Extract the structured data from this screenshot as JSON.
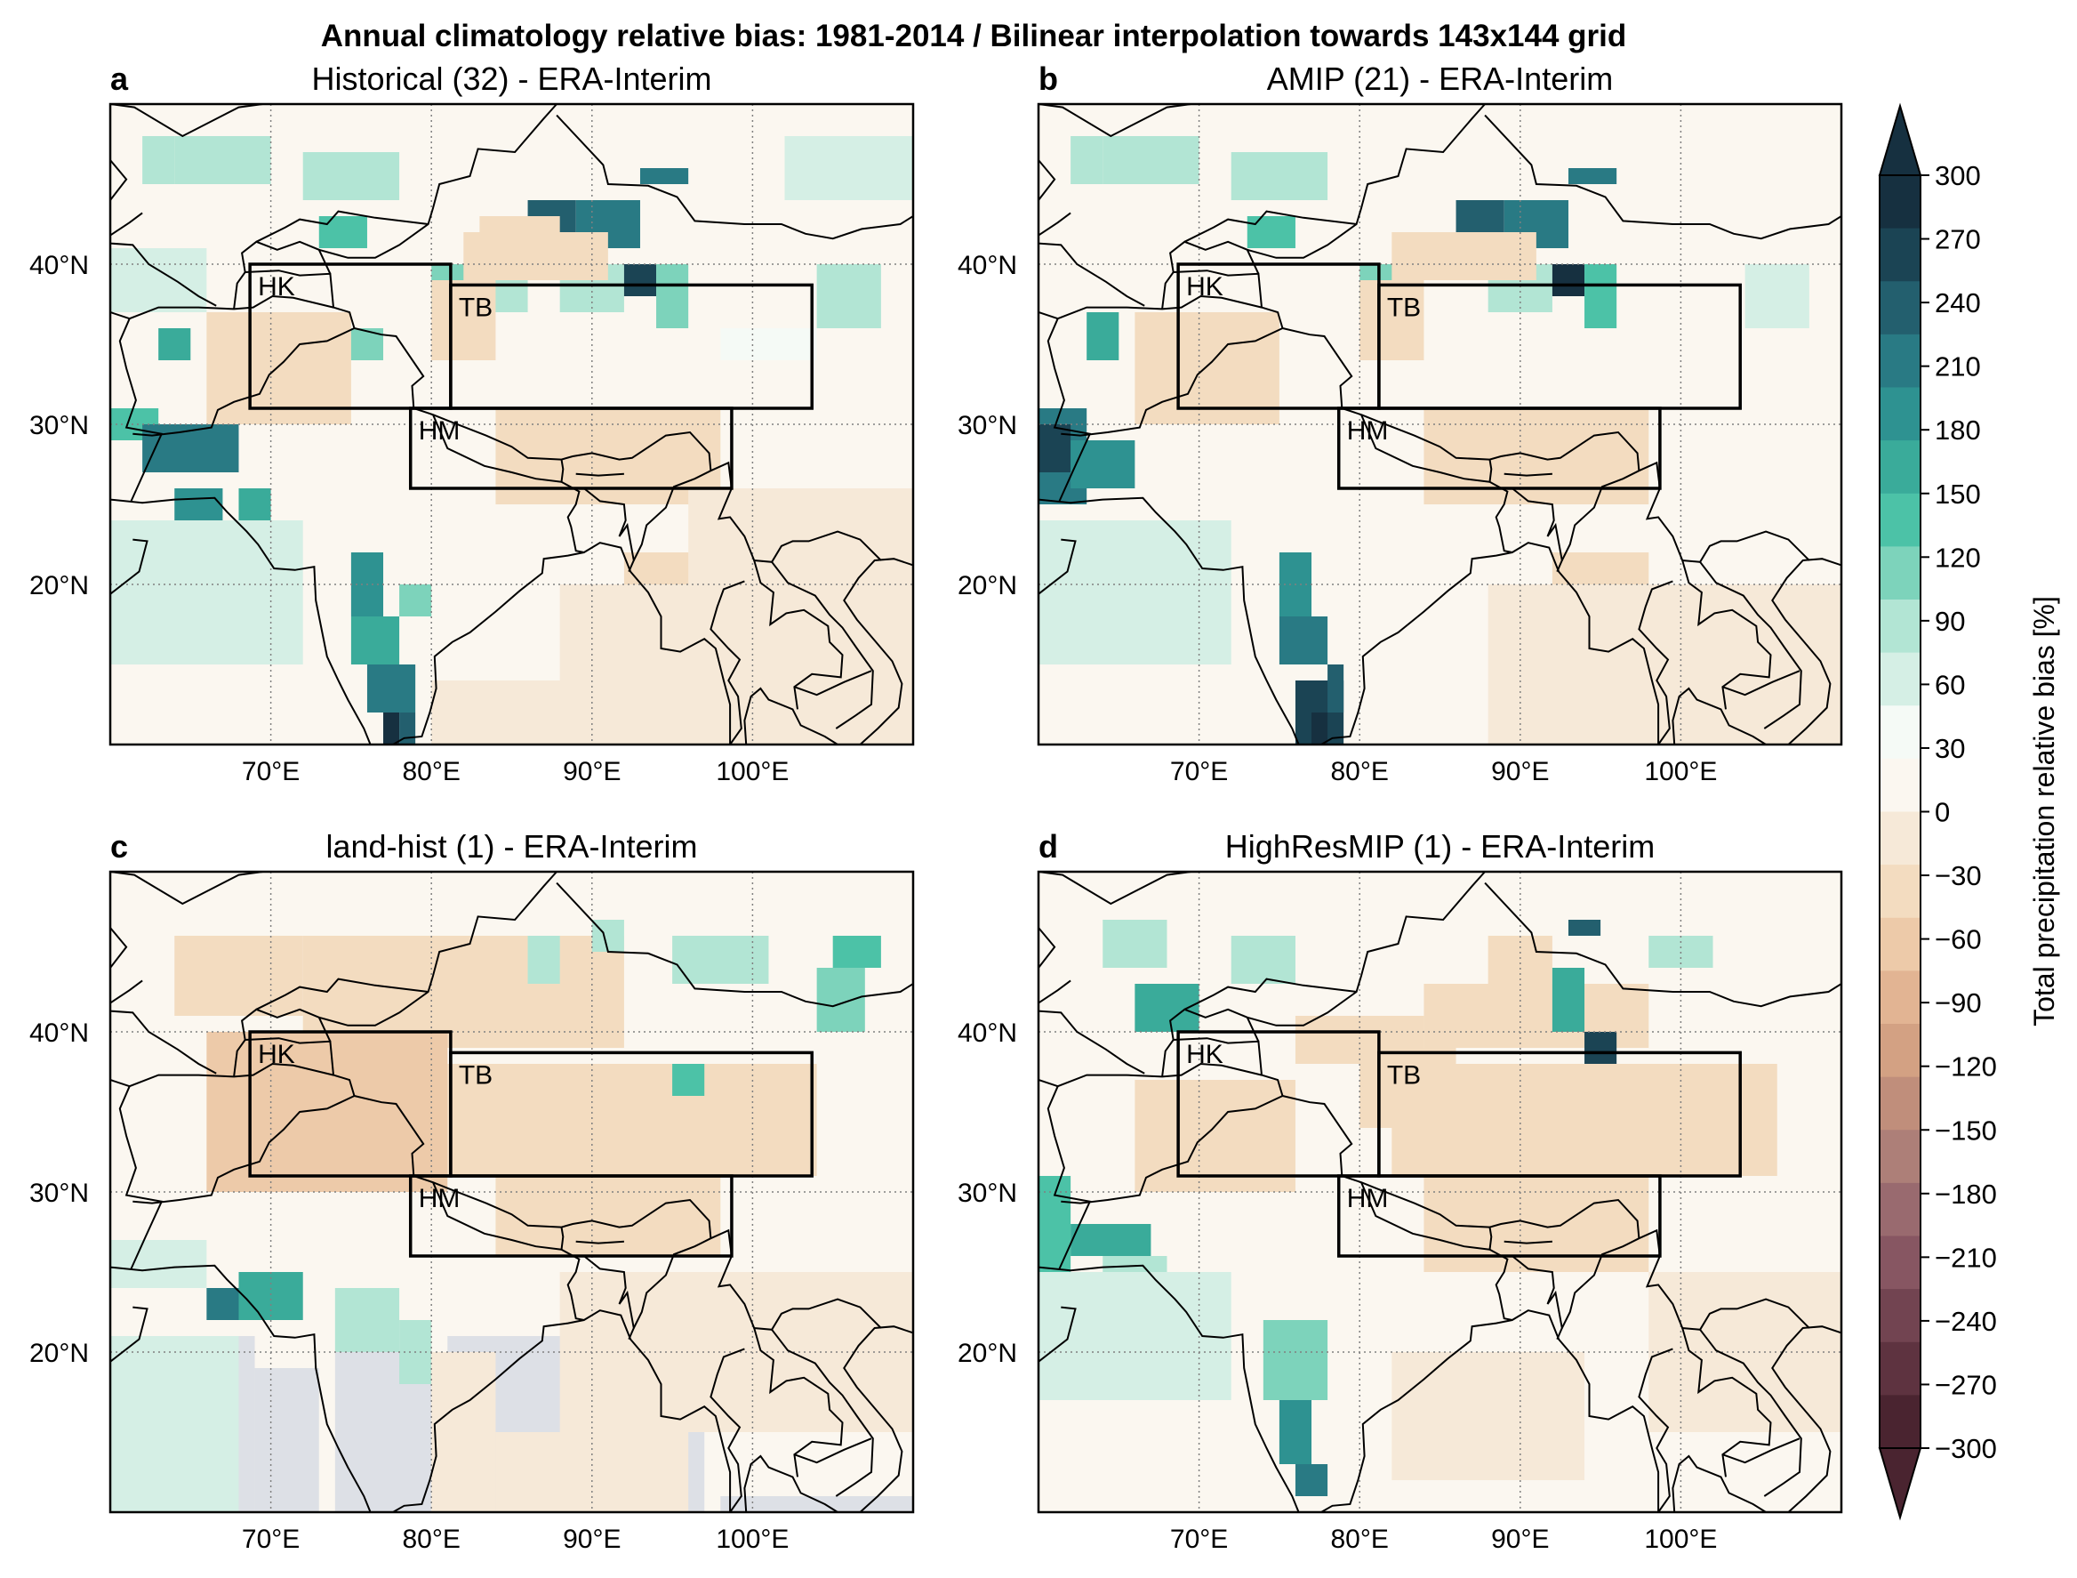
{
  "figure": {
    "title": "Annual climatology relative bias: 1981-2014 / Bilinear interpolation towards 143x144 grid"
  },
  "colors": {
    "scale": [
      "#4a2430",
      "#5e3340",
      "#724451",
      "#875662",
      "#996a6f",
      "#ad7f78",
      "#c08e7b",
      "#d3a183",
      "#e2b493",
      "#edcaa9",
      "#f3dcc0",
      "#f6e9d8",
      "#fbf7f0",
      "#f5faf6",
      "#d5efe5",
      "#b2e5d4",
      "#7dd3bb",
      "#4cc2a7",
      "#3aab9a",
      "#2e9291",
      "#297a84",
      "#235f6e",
      "#1b4454",
      "#163040"
    ],
    "land_masked": "#dde0e6",
    "coastline": "#000000",
    "grid": "#808080"
  },
  "chart_data": {
    "type": "heatmap",
    "lon_range": [
      60,
      110
    ],
    "lat_range": [
      10,
      50
    ],
    "x_ticks": [
      "70°E",
      "80°E",
      "90°E",
      "100°E"
    ],
    "y_ticks": [
      "40°N",
      "30°N",
      "20°N"
    ],
    "regions": [
      "HK",
      "TB",
      "HM"
    ],
    "panels": [
      {
        "letter": "a",
        "title": "Historical (32) - ERA-Interim"
      },
      {
        "letter": "b",
        "title": "AMIP (21) - ERA-Interim"
      },
      {
        "letter": "c",
        "title": "land-hist (1) - ERA-Interim"
      },
      {
        "letter": "d",
        "title": "HighResMIP (1) - ERA-Interim"
      }
    ],
    "colorbar": {
      "label": "Total precipitation relative bias [%]",
      "ticks": [
        "300",
        "270",
        "240",
        "210",
        "180",
        "150",
        "120",
        "90",
        "60",
        "30",
        "0",
        "−30",
        "−60",
        "−90",
        "−120",
        "−150",
        "−180",
        "−210",
        "−240",
        "−270",
        "−300"
      ],
      "extend": "both"
    }
  }
}
